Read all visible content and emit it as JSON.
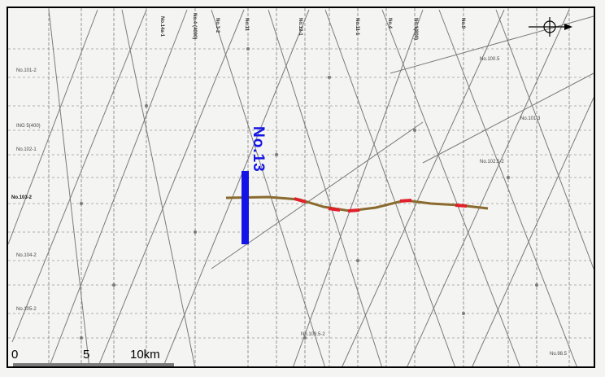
{
  "map": {
    "track_line_label": "No.13",
    "scale": {
      "tick_0": "0",
      "tick_5": "5",
      "tick_10": "10km"
    },
    "colors": {
      "track_line": "#1414e6",
      "profile": "#8a6a2e",
      "profile_highlight": "#e0202a"
    },
    "north_arrow_icon": "north-arrow-icon",
    "grid_labels_left": [
      "No.101-2",
      "ING 5(400)",
      "No.102-1",
      "No.103-2",
      "No.104-2",
      "No.105-2"
    ],
    "grid_labels_top": [
      "No.14a-1",
      "No.4-(4000)",
      "No.3-2",
      "No.11",
      "No.12-1",
      "No.11-1",
      "No.4",
      "No.1(800)",
      "No.9"
    ],
    "grid_labels_right": [
      "No.100.5",
      "No.101.3",
      "No.102.5-2",
      "No.103.5-2",
      "No.98.5"
    ]
  }
}
